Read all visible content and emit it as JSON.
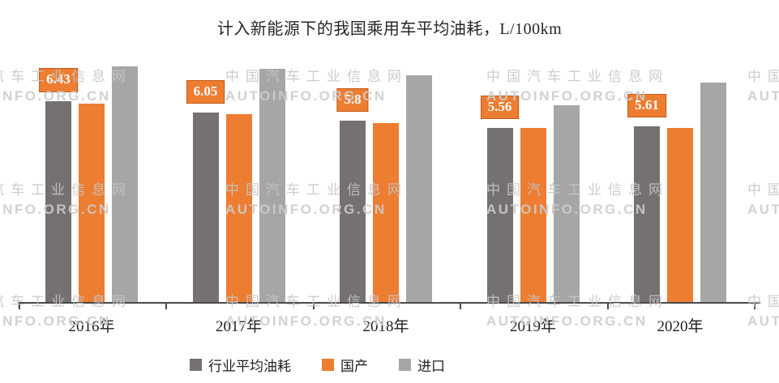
{
  "chart_data": {
    "type": "bar",
    "title": "计入新能源下的我国乘用车平均油耗，L/100km",
    "unit": "L/100km",
    "categories": [
      "2016年",
      "2017年",
      "2018年",
      "2019年",
      "2020年"
    ],
    "series": [
      {
        "key": "industry-average",
        "name": "行业平均油耗",
        "color": "#767171",
        "values": [
          6.43,
          6.05,
          5.8,
          5.56,
          5.61
        ]
      },
      {
        "key": "domestic",
        "name": "国产",
        "color": "#ED7D31",
        "values": [
          6.34,
          6.01,
          5.73,
          5.57,
          5.57
        ]
      },
      {
        "key": "import",
        "name": "进口",
        "color": "#A6A6A6",
        "values": [
          7.53,
          7.45,
          7.24,
          6.29,
          7.01
        ]
      }
    ],
    "data_labels": {
      "series": "行业平均油耗",
      "values": [
        "6.43",
        "6.05",
        "5.8",
        "5.56",
        "5.61"
      ],
      "background": "#ED7D31",
      "text_color": "#ffffff"
    },
    "xlabel": "",
    "ylabel": "",
    "ylim": [
      0,
      7.8
    ],
    "grid": false,
    "y_axis_visible": false,
    "legend_position": "bottom"
  },
  "watermark": {
    "line1": "中国汽车工业信息网",
    "line2": "AUTOINFO.ORG.CN",
    "color": "#c9c9c9"
  },
  "axis_color": "#4a4a4a"
}
